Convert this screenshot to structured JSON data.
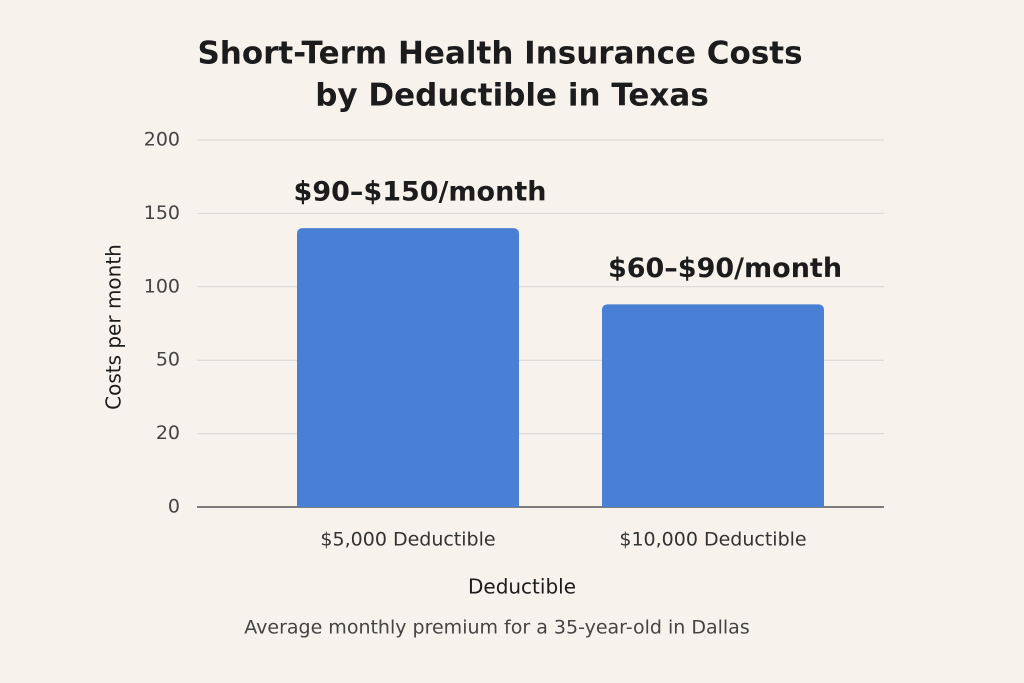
{
  "chart_data": {
    "type": "bar",
    "title": [
      "Short-Term Health Insurance Costs",
      "by Deductible in Texas"
    ],
    "categories": [
      "$5,000 Deductible",
      "$10,000 Deductible"
    ],
    "values": [
      140,
      88
    ],
    "annotations": [
      "$90–$150/month",
      "$60–$90/month"
    ],
    "color": "#4a7fd6",
    "ylim": [
      0,
      200
    ],
    "yticks": [
      0,
      20,
      50,
      100,
      150,
      200
    ],
    "grid": true,
    "x_label": "Deductible",
    "y_label": "Costs per month",
    "caption": "Average monthly premium for a 35-year-old in Dallas"
  }
}
